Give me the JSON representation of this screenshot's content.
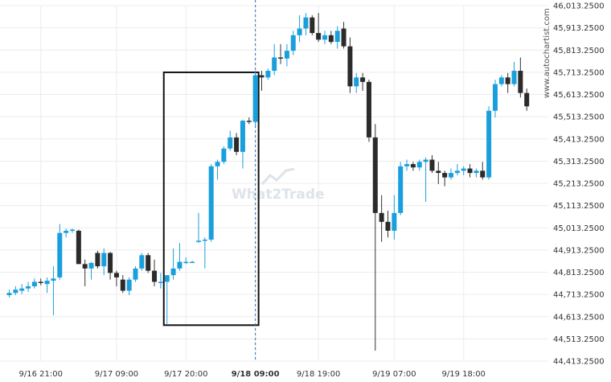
{
  "chart_data": {
    "type": "candlestick",
    "y_ticks": [
      "46,013.2500",
      "45,913.2500",
      "45,813.2500",
      "45,713.2500",
      "45,613.2500",
      "45,513.2500",
      "45,413.2500",
      "45,313.2500",
      "45,213.2500",
      "45,113.2500",
      "45,013.2500",
      "44,913.2500",
      "44,813.2500",
      "44,713.2500",
      "44,613.2500",
      "44,513.2500",
      "44,413.2500"
    ],
    "ylim": [
      44413.25,
      46013.25
    ],
    "x_labels": [
      {
        "text": "9/16 21:00",
        "index": 5,
        "bold": false
      },
      {
        "text": "9/17 09:00",
        "index": 17,
        "bold": false
      },
      {
        "text": "9/17 20:00",
        "index": 28,
        "bold": false
      },
      {
        "text": "9/18 09:00",
        "index": 39,
        "bold": true
      },
      {
        "text": "9/18 19:00",
        "index": 49,
        "bold": false
      },
      {
        "text": "9/19 07:00",
        "index": 61,
        "bold": false
      },
      {
        "text": "9/19 18:00",
        "index": 72,
        "bold": false
      }
    ],
    "vline_index": 39,
    "highlight": {
      "start_index": 25,
      "end_index": 39,
      "low": 44575,
      "high": 45713
    },
    "source_label": "www.autochartist.com",
    "watermark": "What2Trade",
    "colors": {
      "up": "#1a9fdd",
      "down": "#2b2b2b",
      "grid": "#ececec",
      "box": "#111111",
      "vline": "#2a6fb0"
    },
    "candles": [
      {
        "o": 44710,
        "h": 44735,
        "l": 44700,
        "c": 44720
      },
      {
        "o": 44720,
        "h": 44750,
        "l": 44710,
        "c": 44735
      },
      {
        "o": 44730,
        "h": 44760,
        "l": 44715,
        "c": 44740
      },
      {
        "o": 44740,
        "h": 44770,
        "l": 44725,
        "c": 44750
      },
      {
        "o": 44750,
        "h": 44785,
        "l": 44740,
        "c": 44770
      },
      {
        "o": 44770,
        "h": 44785,
        "l": 44755,
        "c": 44765
      },
      {
        "o": 44760,
        "h": 44790,
        "l": 44720,
        "c": 44775
      },
      {
        "o": 44775,
        "h": 44840,
        "l": 44620,
        "c": 44785
      },
      {
        "o": 44790,
        "h": 45030,
        "l": 44780,
        "c": 44990
      },
      {
        "o": 44990,
        "h": 45010,
        "l": 44970,
        "c": 45000
      },
      {
        "o": 45000,
        "h": 45010,
        "l": 44990,
        "c": 45005
      },
      {
        "o": 45000,
        "h": 45005,
        "l": 44850,
        "c": 44850
      },
      {
        "o": 44850,
        "h": 44870,
        "l": 44750,
        "c": 44830
      },
      {
        "o": 44830,
        "h": 44860,
        "l": 44780,
        "c": 44855
      },
      {
        "o": 44900,
        "h": 44910,
        "l": 44830,
        "c": 44840
      },
      {
        "o": 44840,
        "h": 44920,
        "l": 44800,
        "c": 44900
      },
      {
        "o": 44900,
        "h": 44905,
        "l": 44780,
        "c": 44810
      },
      {
        "o": 44810,
        "h": 44820,
        "l": 44750,
        "c": 44790
      },
      {
        "o": 44780,
        "h": 44800,
        "l": 44720,
        "c": 44730
      },
      {
        "o": 44730,
        "h": 44790,
        "l": 44710,
        "c": 44780
      },
      {
        "o": 44780,
        "h": 44840,
        "l": 44770,
        "c": 44830
      },
      {
        "o": 44830,
        "h": 44900,
        "l": 44820,
        "c": 44890
      },
      {
        "o": 44890,
        "h": 44900,
        "l": 44810,
        "c": 44820
      },
      {
        "o": 44820,
        "h": 44870,
        "l": 44750,
        "c": 44770
      },
      {
        "o": 44770,
        "h": 44810,
        "l": 44740,
        "c": 44770
      },
      {
        "o": 44770,
        "h": 44800,
        "l": 44580,
        "c": 44800
      },
      {
        "o": 44800,
        "h": 44920,
        "l": 44780,
        "c": 44830
      },
      {
        "o": 44830,
        "h": 44945,
        "l": 44820,
        "c": 44860
      },
      {
        "o": 44860,
        "h": 44880,
        "l": 44850,
        "c": 44860
      },
      {
        "o": 44860,
        "h": 44865,
        "l": 44855,
        "c": 44860
      },
      {
        "o": 44950,
        "h": 45080,
        "l": 44945,
        "c": 44955
      },
      {
        "o": 44955,
        "h": 44970,
        "l": 44830,
        "c": 44960
      },
      {
        "o": 44960,
        "h": 45300,
        "l": 44950,
        "c": 45290
      },
      {
        "o": 45290,
        "h": 45320,
        "l": 45230,
        "c": 45310
      },
      {
        "o": 45310,
        "h": 45380,
        "l": 45300,
        "c": 45370
      },
      {
        "o": 45370,
        "h": 45450,
        "l": 45360,
        "c": 45420
      },
      {
        "o": 45420,
        "h": 45440,
        "l": 45340,
        "c": 45355
      },
      {
        "o": 45355,
        "h": 45500,
        "l": 45280,
        "c": 45495
      },
      {
        "o": 45495,
        "h": 45510,
        "l": 45480,
        "c": 45490
      },
      {
        "o": 45490,
        "h": 45720,
        "l": 45470,
        "c": 45700
      },
      {
        "o": 45700,
        "h": 45720,
        "l": 45630,
        "c": 45690
      },
      {
        "o": 45690,
        "h": 45730,
        "l": 45680,
        "c": 45720
      },
      {
        "o": 45720,
        "h": 45840,
        "l": 45700,
        "c": 45780
      },
      {
        "o": 45780,
        "h": 45840,
        "l": 45750,
        "c": 45775
      },
      {
        "o": 45775,
        "h": 45840,
        "l": 45740,
        "c": 45810
      },
      {
        "o": 45810,
        "h": 45900,
        "l": 45790,
        "c": 45880
      },
      {
        "o": 45880,
        "h": 45970,
        "l": 45850,
        "c": 45910
      },
      {
        "o": 45910,
        "h": 45980,
        "l": 45880,
        "c": 45960
      },
      {
        "o": 45960,
        "h": 45970,
        "l": 45880,
        "c": 45890
      },
      {
        "o": 45890,
        "h": 45980,
        "l": 45850,
        "c": 45860
      },
      {
        "o": 45860,
        "h": 45900,
        "l": 45840,
        "c": 45880
      },
      {
        "o": 45880,
        "h": 45900,
        "l": 45840,
        "c": 45850
      },
      {
        "o": 45850,
        "h": 45920,
        "l": 45820,
        "c": 45900
      },
      {
        "o": 45910,
        "h": 45940,
        "l": 45820,
        "c": 45830
      },
      {
        "o": 45830,
        "h": 45870,
        "l": 45620,
        "c": 45650
      },
      {
        "o": 45650,
        "h": 45710,
        "l": 45620,
        "c": 45690
      },
      {
        "o": 45690,
        "h": 45710,
        "l": 45630,
        "c": 45670
      },
      {
        "o": 45670,
        "h": 45680,
        "l": 45400,
        "c": 45420
      },
      {
        "o": 45420,
        "h": 45480,
        "l": 44460,
        "c": 45080
      },
      {
        "o": 45080,
        "h": 45160,
        "l": 44950,
        "c": 45040
      },
      {
        "o": 45040,
        "h": 45090,
        "l": 44970,
        "c": 45000
      },
      {
        "o": 45000,
        "h": 45160,
        "l": 44960,
        "c": 45080
      },
      {
        "o": 45080,
        "h": 45310,
        "l": 45070,
        "c": 45290
      },
      {
        "o": 45290,
        "h": 45320,
        "l": 45270,
        "c": 45300
      },
      {
        "o": 45300,
        "h": 45310,
        "l": 45270,
        "c": 45285
      },
      {
        "o": 45285,
        "h": 45320,
        "l": 45270,
        "c": 45310
      },
      {
        "o": 45310,
        "h": 45330,
        "l": 45130,
        "c": 45320
      },
      {
        "o": 45320,
        "h": 45340,
        "l": 45260,
        "c": 45270
      },
      {
        "o": 45270,
        "h": 45310,
        "l": 45210,
        "c": 45260
      },
      {
        "o": 45260,
        "h": 45270,
        "l": 45200,
        "c": 45240
      },
      {
        "o": 45240,
        "h": 45280,
        "l": 45230,
        "c": 45260
      },
      {
        "o": 45260,
        "h": 45300,
        "l": 45250,
        "c": 45270
      },
      {
        "o": 45270,
        "h": 45290,
        "l": 45250,
        "c": 45280
      },
      {
        "o": 45280,
        "h": 45300,
        "l": 45240,
        "c": 45260
      },
      {
        "o": 45260,
        "h": 45280,
        "l": 45240,
        "c": 45270
      },
      {
        "o": 45270,
        "h": 45310,
        "l": 45230,
        "c": 45240
      },
      {
        "o": 45240,
        "h": 45560,
        "l": 45230,
        "c": 45540
      },
      {
        "o": 45540,
        "h": 45680,
        "l": 45510,
        "c": 45660
      },
      {
        "o": 45660,
        "h": 45700,
        "l": 45650,
        "c": 45690
      },
      {
        "o": 45690,
        "h": 45710,
        "l": 45620,
        "c": 45660
      },
      {
        "o": 45660,
        "h": 45760,
        "l": 45650,
        "c": 45720
      },
      {
        "o": 45720,
        "h": 45780,
        "l": 45600,
        "c": 45620
      },
      {
        "o": 45620,
        "h": 45640,
        "l": 45540,
        "c": 45560
      }
    ]
  }
}
